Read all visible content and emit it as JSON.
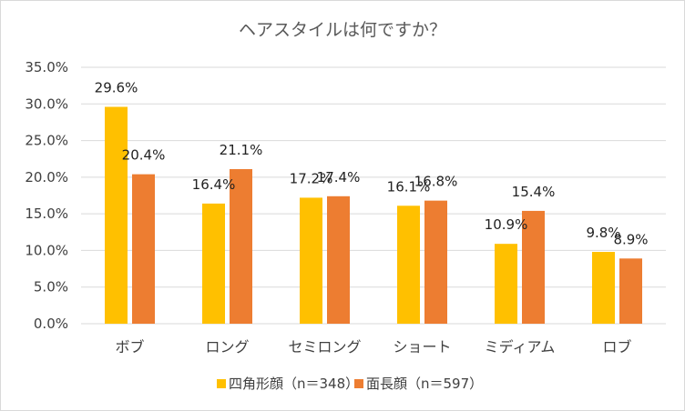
{
  "chart_data": {
    "type": "bar",
    "title": "ヘアスタイルは何ですか？",
    "xlabel": "",
    "ylabel": "",
    "ylim": [
      0,
      35
    ],
    "y_ticks": [
      0,
      5,
      10,
      15,
      20,
      25,
      30,
      35
    ],
    "y_tick_labels": [
      "0.0%",
      "5.0%",
      "10.0%",
      "15.0%",
      "20.0%",
      "25.0%",
      "30.0%",
      "35.0%"
    ],
    "grid": true,
    "legend_position": "bottom",
    "categories": [
      "ボブ",
      "ロング",
      "セミロング",
      "ショート",
      "ミディアム",
      "ロブ"
    ],
    "series": [
      {
        "name": "四角形顔（n＝348）",
        "color": "#FFC000",
        "values": [
          29.6,
          16.4,
          17.2,
          16.1,
          10.9,
          9.8
        ],
        "labels": [
          "29.6%",
          "16.4%",
          "17.2%",
          "16.1%",
          "10.9%",
          "9.8%"
        ]
      },
      {
        "name": "面長顔（n＝597）",
        "color": "#ED7D31",
        "values": [
          20.4,
          21.1,
          17.4,
          16.8,
          15.4,
          8.9
        ],
        "labels": [
          "20.4%",
          "21.1%",
          "17.4%",
          "16.8%",
          "15.4%",
          "8.9%"
        ]
      }
    ]
  }
}
